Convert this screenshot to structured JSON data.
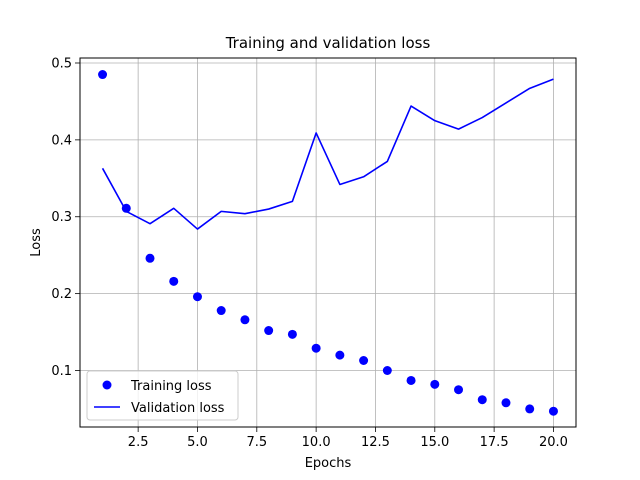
{
  "chart_data": {
    "type": "line",
    "title": "Training and validation loss",
    "xlabel": "Epochs",
    "ylabel": "Loss",
    "xlim": [
      0.05,
      20.95
    ],
    "ylim": [
      0.0265,
      0.5065
    ],
    "xticks": [
      2.5,
      5.0,
      7.5,
      10.0,
      12.5,
      15.0,
      17.5,
      20.0
    ],
    "xtick_labels": [
      "2.5",
      "5.0",
      "7.5",
      "10.0",
      "12.5",
      "15.0",
      "17.5",
      "20.0"
    ],
    "yticks": [
      0.1,
      0.2,
      0.3,
      0.4,
      0.5
    ],
    "ytick_labels": [
      "0.1",
      "0.2",
      "0.3",
      "0.4",
      "0.5"
    ],
    "grid": true,
    "legend_position": "lower-left",
    "x": [
      1,
      2,
      3,
      4,
      5,
      6,
      7,
      8,
      9,
      10,
      11,
      12,
      13,
      14,
      15,
      16,
      17,
      18,
      19,
      20
    ],
    "series": [
      {
        "name": "Training loss",
        "style": "markers",
        "color": "#0000ff",
        "values": [
          0.485,
          0.311,
          0.246,
          0.216,
          0.196,
          0.178,
          0.166,
          0.152,
          0.147,
          0.129,
          0.12,
          0.113,
          0.1,
          0.087,
          0.082,
          0.075,
          0.062,
          0.058,
          0.05,
          0.047
        ]
      },
      {
        "name": "Validation loss",
        "style": "line",
        "color": "#0000ff",
        "values": [
          0.363,
          0.307,
          0.291,
          0.311,
          0.284,
          0.307,
          0.304,
          0.31,
          0.32,
          0.409,
          0.342,
          0.352,
          0.372,
          0.444,
          0.425,
          0.414,
          0.429,
          0.448,
          0.467,
          0.479
        ]
      }
    ]
  }
}
